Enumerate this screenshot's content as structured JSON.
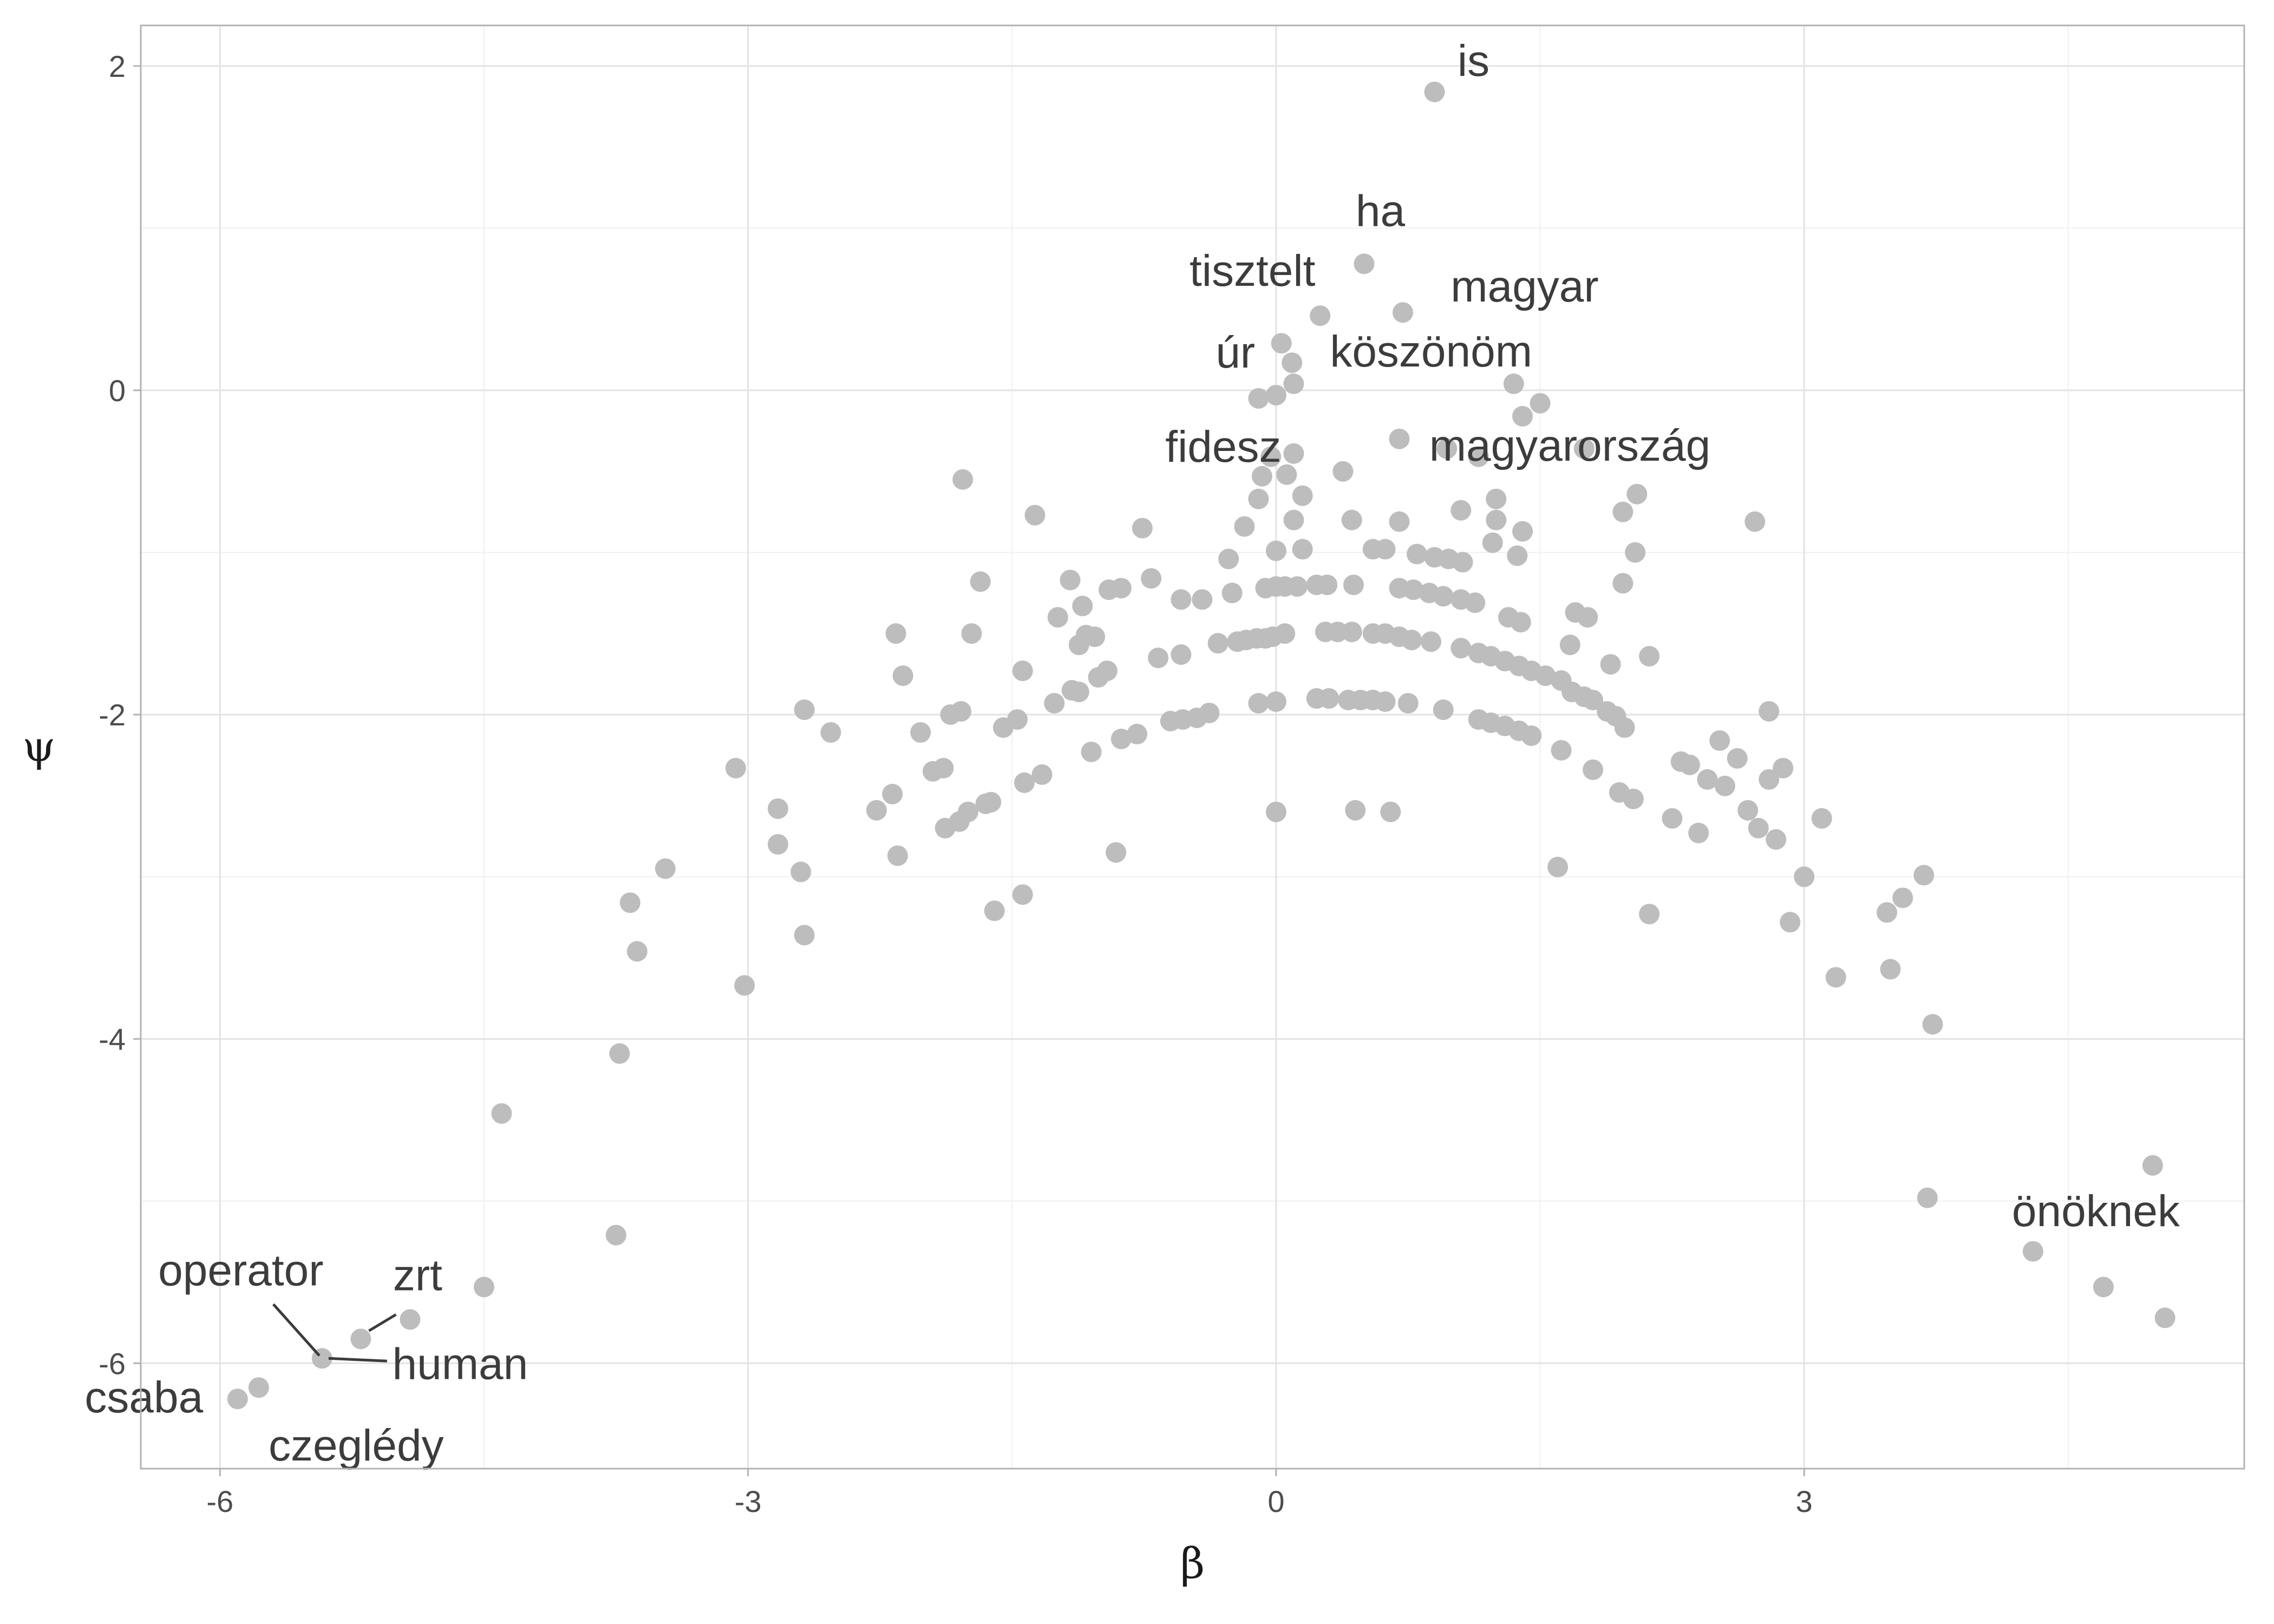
{
  "chart_data": {
    "type": "scatter",
    "title": "",
    "xlabel": "β",
    "ylabel": "ψ",
    "xlim": [
      -6.45,
      5.5
    ],
    "ylim": [
      -6.65,
      2.25
    ],
    "grid": true,
    "x_ticks": [
      -6,
      -3,
      0,
      3
    ],
    "x_tick_labels": [
      "-6",
      "-3",
      "0",
      "3"
    ],
    "y_ticks": [
      -6,
      -4,
      -2,
      0,
      2
    ],
    "y_tick_labels": [
      "-6",
      "-4",
      "-2",
      "0",
      "2"
    ],
    "point_color": "#bdbdbd",
    "labeled_points": [
      {
        "label": "is",
        "x": 0.9,
        "y": 1.84
      },
      {
        "label": "ha",
        "x": 0.5,
        "y": 0.78
      },
      {
        "label": "tisztelt",
        "x": 0.25,
        "y": 0.46
      },
      {
        "label": "magyar",
        "x": 0.72,
        "y": 0.48
      },
      {
        "label": "úr",
        "x": 0.03,
        "y": 0.29
      },
      {
        "label": "köszönöm",
        "x": 0.09,
        "y": 0.17
      },
      {
        "label": "fidesz",
        "x": -0.1,
        "y": -0.05
      },
      {
        "label": "magyarország",
        "x": 0.7,
        "y": -0.3
      },
      {
        "label": "önöknek",
        "x": 4.98,
        "y": -4.78
      },
      {
        "label": "operator",
        "x": -5.42,
        "y": -5.97
      },
      {
        "label": "zrt",
        "x": -5.2,
        "y": -5.85
      },
      {
        "label": "csaba",
        "x": -5.9,
        "y": -6.22
      },
      {
        "label": "human",
        "x": -5.42,
        "y": -5.97
      },
      {
        "label": "czeglédy",
        "x": -5.78,
        "y": -6.15
      }
    ],
    "points": [
      [
        0.9,
        1.84
      ],
      [
        0.5,
        0.78
      ],
      [
        0.25,
        0.46
      ],
      [
        0.72,
        0.48
      ],
      [
        0.03,
        0.29
      ],
      [
        0.09,
        0.17
      ],
      [
        1.35,
        0.04
      ],
      [
        0.1,
        0.04
      ],
      [
        -0.1,
        -0.05
      ],
      [
        0.0,
        -0.03
      ],
      [
        1.5,
        -0.08
      ],
      [
        1.4,
        -0.16
      ],
      [
        0.7,
        -0.3
      ],
      [
        0.97,
        -0.36
      ],
      [
        1.15,
        -0.41
      ],
      [
        1.75,
        -0.36
      ],
      [
        -0.03,
        -0.41
      ],
      [
        0.1,
        -0.39
      ],
      [
        -0.08,
        -0.53
      ],
      [
        0.06,
        -0.52
      ],
      [
        0.38,
        -0.5
      ],
      [
        -1.78,
        -0.55
      ],
      [
        -0.1,
        -0.67
      ],
      [
        0.15,
        -0.65
      ],
      [
        1.25,
        -0.67
      ],
      [
        2.05,
        -0.64
      ],
      [
        1.05,
        -0.74
      ],
      [
        1.97,
        -0.75
      ],
      [
        -1.37,
        -0.77
      ],
      [
        0.1,
        -0.8
      ],
      [
        0.43,
        -0.8
      ],
      [
        0.7,
        -0.81
      ],
      [
        1.25,
        -0.8
      ],
      [
        2.72,
        -0.81
      ],
      [
        -0.76,
        -0.85
      ],
      [
        -0.18,
        -0.84
      ],
      [
        1.4,
        -0.87
      ],
      [
        1.23,
        -0.94
      ],
      [
        0.15,
        -0.98
      ],
      [
        0.55,
        -0.98
      ],
      [
        0.62,
        -0.98
      ],
      [
        0.0,
        -0.99
      ],
      [
        0.8,
        -1.01
      ],
      [
        0.9,
        -1.03
      ],
      [
        0.98,
        -1.04
      ],
      [
        1.06,
        -1.06
      ],
      [
        1.37,
        -1.02
      ],
      [
        2.04,
        -1.0
      ],
      [
        -0.27,
        -1.04
      ],
      [
        -1.68,
        -1.18
      ],
      [
        -1.17,
        -1.17
      ],
      [
        -0.71,
        -1.16
      ],
      [
        -0.95,
        -1.23
      ],
      [
        -0.88,
        -1.22
      ],
      [
        -0.54,
        -1.29
      ],
      [
        -0.42,
        -1.29
      ],
      [
        -0.25,
        -1.25
      ],
      [
        -0.06,
        -1.22
      ],
      [
        0.0,
        -1.21
      ],
      [
        0.05,
        -1.21
      ],
      [
        0.12,
        -1.21
      ],
      [
        0.23,
        -1.2
      ],
      [
        0.29,
        -1.2
      ],
      [
        0.44,
        -1.2
      ],
      [
        0.7,
        -1.22
      ],
      [
        0.78,
        -1.23
      ],
      [
        0.87,
        -1.25
      ],
      [
        0.95,
        -1.27
      ],
      [
        1.05,
        -1.29
      ],
      [
        1.13,
        -1.31
      ],
      [
        1.97,
        -1.19
      ],
      [
        -1.1,
        -1.33
      ],
      [
        -1.24,
        -1.4
      ],
      [
        1.7,
        -1.37
      ],
      [
        1.77,
        -1.4
      ],
      [
        1.39,
        -1.43
      ],
      [
        1.32,
        -1.4
      ],
      [
        -2.16,
        -1.5
      ],
      [
        -1.73,
        -1.5
      ],
      [
        -1.03,
        -1.52
      ],
      [
        -1.08,
        -1.51
      ],
      [
        -1.12,
        -1.57
      ],
      [
        -0.33,
        -1.56
      ],
      [
        -0.22,
        -1.55
      ],
      [
        -0.17,
        -1.54
      ],
      [
        -0.11,
        -1.53
      ],
      [
        -0.06,
        -1.53
      ],
      [
        -0.02,
        -1.52
      ],
      [
        0.05,
        -1.5
      ],
      [
        0.28,
        -1.49
      ],
      [
        0.35,
        -1.49
      ],
      [
        0.43,
        -1.49
      ],
      [
        0.55,
        -1.5
      ],
      [
        0.62,
        -1.5
      ],
      [
        0.7,
        -1.52
      ],
      [
        0.77,
        -1.54
      ],
      [
        0.88,
        -1.55
      ],
      [
        1.05,
        -1.59
      ],
      [
        1.15,
        -1.62
      ],
      [
        1.22,
        -1.64
      ],
      [
        1.3,
        -1.67
      ],
      [
        1.38,
        -1.7
      ],
      [
        1.45,
        -1.73
      ],
      [
        1.53,
        -1.76
      ],
      [
        1.62,
        -1.79
      ],
      [
        1.68,
        -1.86
      ],
      [
        1.75,
        -1.89
      ],
      [
        1.8,
        -1.91
      ],
      [
        1.88,
        -1.98
      ],
      [
        1.93,
        -2.01
      ],
      [
        1.67,
        -1.57
      ],
      [
        1.9,
        -1.69
      ],
      [
        2.12,
        -1.64
      ],
      [
        -2.12,
        -1.76
      ],
      [
        -0.67,
        -1.65
      ],
      [
        -0.54,
        -1.63
      ],
      [
        -0.96,
        -1.73
      ],
      [
        -1.01,
        -1.77
      ],
      [
        -1.12,
        -1.86
      ],
      [
        -1.16,
        -1.85
      ],
      [
        -1.26,
        -1.93
      ],
      [
        -1.44,
        -1.73
      ],
      [
        -1.47,
        -2.03
      ],
      [
        -1.55,
        -2.08
      ],
      [
        -1.79,
        -1.98
      ],
      [
        -1.85,
        -2.0
      ],
      [
        -1.89,
        -2.33
      ],
      [
        -1.95,
        -2.35
      ],
      [
        -2.02,
        -2.11
      ],
      [
        -2.18,
        -2.49
      ],
      [
        -0.6,
        -2.04
      ],
      [
        -0.53,
        -2.03
      ],
      [
        -0.45,
        -2.02
      ],
      [
        -0.38,
        -1.99
      ],
      [
        -0.1,
        -1.93
      ],
      [
        0.0,
        -1.92
      ],
      [
        0.23,
        -1.9
      ],
      [
        0.3,
        -1.9
      ],
      [
        0.41,
        -1.91
      ],
      [
        0.48,
        -1.91
      ],
      [
        0.55,
        -1.91
      ],
      [
        0.62,
        -1.92
      ],
      [
        0.75,
        -1.93
      ],
      [
        0.95,
        -1.97
      ],
      [
        1.15,
        -2.03
      ],
      [
        1.22,
        -2.05
      ],
      [
        1.3,
        -2.07
      ],
      [
        1.38,
        -2.1
      ],
      [
        1.45,
        -2.13
      ],
      [
        1.62,
        -2.22
      ],
      [
        1.98,
        -2.08
      ],
      [
        2.8,
        -1.98
      ],
      [
        -2.68,
        -1.97
      ],
      [
        -2.53,
        -2.11
      ],
      [
        -3.07,
        -2.33
      ],
      [
        -2.83,
        -2.58
      ],
      [
        -2.83,
        -2.8
      ],
      [
        -2.7,
        -2.97
      ],
      [
        -2.68,
        -3.36
      ],
      [
        -2.27,
        -2.59
      ],
      [
        -2.15,
        -2.87
      ],
      [
        -1.8,
        -2.66
      ],
      [
        -1.75,
        -2.6
      ],
      [
        -1.88,
        -2.7
      ],
      [
        -1.65,
        -2.55
      ],
      [
        -1.62,
        -2.54
      ],
      [
        -1.43,
        -2.42
      ],
      [
        -1.33,
        -2.37
      ],
      [
        -1.05,
        -2.23
      ],
      [
        -0.88,
        -2.15
      ],
      [
        -0.79,
        -2.12
      ],
      [
        -0.91,
        -2.85
      ],
      [
        -1.6,
        -3.21
      ],
      [
        -1.44,
        -3.11
      ],
      [
        0.0,
        -2.6
      ],
      [
        0.45,
        -2.59
      ],
      [
        0.65,
        -2.6
      ],
      [
        1.6,
        -2.94
      ],
      [
        1.8,
        -2.34
      ],
      [
        1.95,
        -2.48
      ],
      [
        2.03,
        -2.52
      ],
      [
        2.12,
        -3.23
      ],
      [
        2.25,
        -2.64
      ],
      [
        2.3,
        -2.29
      ],
      [
        2.35,
        -2.31
      ],
      [
        2.4,
        -2.73
      ],
      [
        2.45,
        -2.4
      ],
      [
        2.52,
        -2.16
      ],
      [
        2.55,
        -2.44
      ],
      [
        2.62,
        -2.27
      ],
      [
        2.68,
        -2.59
      ],
      [
        2.74,
        -2.7
      ],
      [
        2.8,
        -2.4
      ],
      [
        2.84,
        -2.77
      ],
      [
        2.88,
        -2.33
      ],
      [
        2.92,
        -3.28
      ],
      [
        3.0,
        -3.0
      ],
      [
        3.1,
        -2.64
      ],
      [
        3.18,
        -3.62
      ],
      [
        3.47,
        -3.22
      ],
      [
        3.49,
        -3.57
      ],
      [
        3.56,
        -3.13
      ],
      [
        3.68,
        -2.99
      ],
      [
        3.7,
        -4.98
      ],
      [
        3.73,
        -3.91
      ],
      [
        -3.47,
        -2.95
      ],
      [
        -3.02,
        -3.67
      ],
      [
        -3.67,
        -3.16
      ],
      [
        -3.63,
        -3.46
      ],
      [
        -3.73,
        -4.09
      ],
      [
        -3.75,
        -5.21
      ],
      [
        -4.4,
        -4.46
      ],
      [
        -4.5,
        -5.53
      ],
      [
        -5.2,
        -5.85
      ],
      [
        -4.92,
        -5.73
      ],
      [
        -5.42,
        -5.97
      ],
      [
        -5.9,
        -6.22
      ],
      [
        -5.78,
        -6.15
      ],
      [
        4.3,
        -5.31
      ],
      [
        4.7,
        -5.53
      ],
      [
        4.98,
        -4.78
      ],
      [
        5.05,
        -5.72
      ]
    ]
  }
}
